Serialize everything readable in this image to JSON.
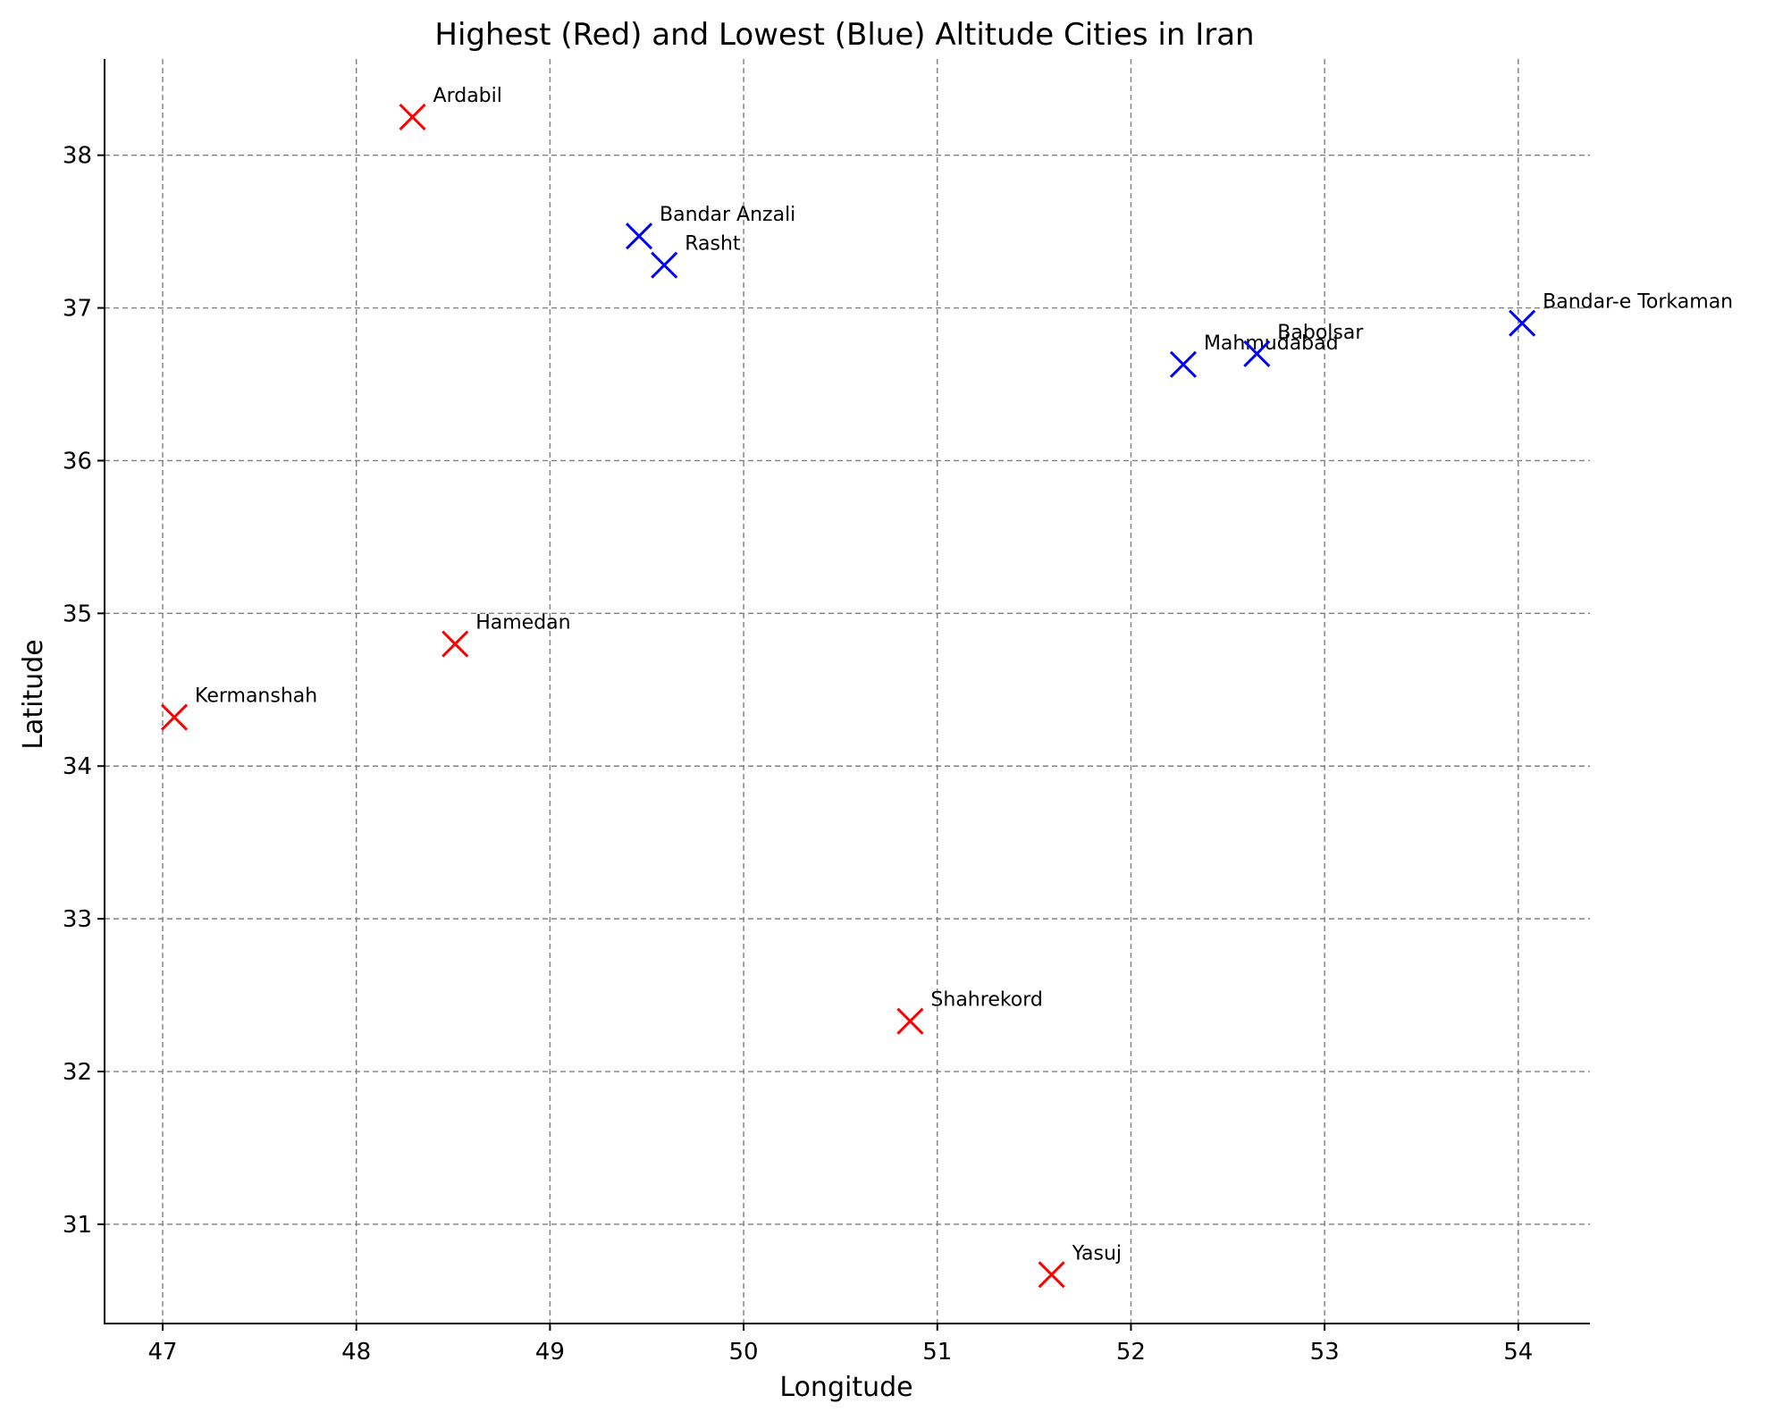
{
  "chart_data": {
    "type": "scatter",
    "title": "Highest (Red) and Lowest (Blue) Altitude Cities in Iran",
    "xlabel": "Longitude",
    "ylabel": "Latitude",
    "xlim": [
      46.7,
      54.37
    ],
    "ylim": [
      30.35,
      38.63
    ],
    "xticks": [
      47,
      48,
      49,
      50,
      51,
      52,
      53,
      54
    ],
    "yticks": [
      31,
      32,
      33,
      34,
      35,
      36,
      37,
      38
    ],
    "grid": true,
    "marker": "x",
    "colors": {
      "highest": "#ff0000",
      "lowest": "#0000ff"
    },
    "series": [
      {
        "group": "highest",
        "color": "#ff0000",
        "points": [
          {
            "label": "Ardabil",
            "x": 48.29,
            "y": 38.25
          },
          {
            "label": "Hamedan",
            "x": 48.51,
            "y": 34.8
          },
          {
            "label": "Kermanshah",
            "x": 47.06,
            "y": 34.32
          },
          {
            "label": "Shahrekord",
            "x": 50.86,
            "y": 32.33
          },
          {
            "label": "Yasuj",
            "x": 51.59,
            "y": 30.67
          }
        ]
      },
      {
        "group": "lowest",
        "color": "#0000ff",
        "points": [
          {
            "label": "Bandar Anzali",
            "x": 49.46,
            "y": 37.47
          },
          {
            "label": "Rasht",
            "x": 49.59,
            "y": 37.28
          },
          {
            "label": "Mahmudabad",
            "x": 52.27,
            "y": 36.63
          },
          {
            "label": "Babolsar",
            "x": 52.65,
            "y": 36.7
          },
          {
            "label": "Bandar-e Torkaman",
            "x": 54.02,
            "y": 36.9
          }
        ]
      }
    ]
  }
}
